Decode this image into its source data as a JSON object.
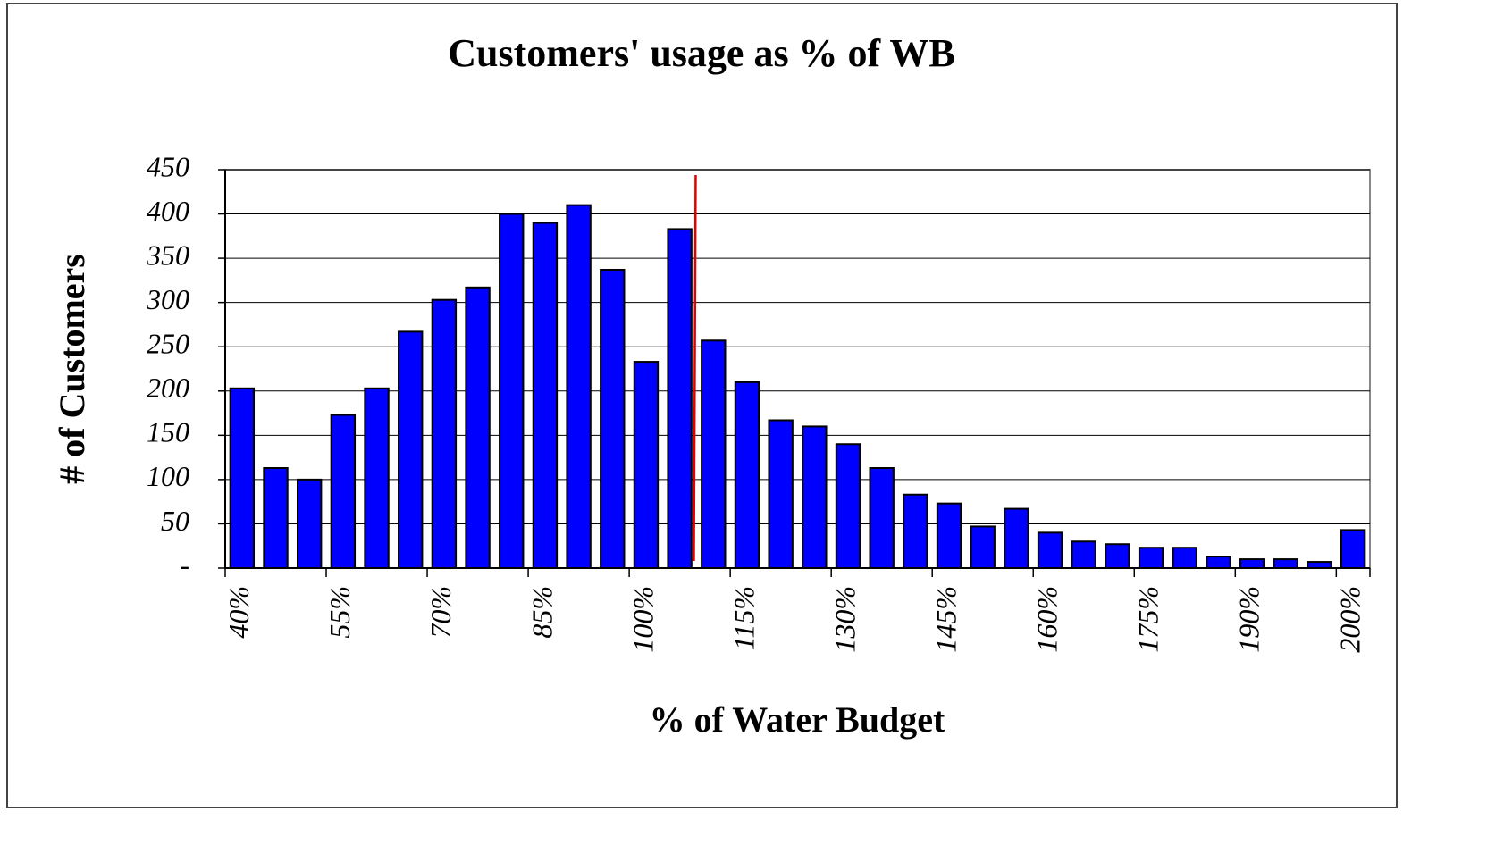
{
  "chart_data": {
    "type": "bar",
    "title": "Customers' usage as % of WB",
    "x_label": "% of Water Budget",
    "y_label": "# of Customers",
    "categories": [
      "40%",
      null,
      null,
      "55%",
      null,
      null,
      "70%",
      null,
      null,
      "85%",
      null,
      null,
      "100%",
      null,
      null,
      "115%",
      null,
      null,
      "130%",
      null,
      null,
      "145%",
      null,
      null,
      "160%",
      null,
      null,
      "175%",
      null,
      null,
      "190%",
      null,
      null,
      "200%"
    ],
    "values": [
      203,
      113,
      100,
      173,
      203,
      267,
      303,
      317,
      400,
      390,
      410,
      337,
      233,
      383,
      257,
      210,
      167,
      160,
      140,
      113,
      83,
      73,
      47,
      67,
      40,
      30,
      27,
      23,
      23,
      13,
      10,
      10,
      7,
      43
    ],
    "color": "#0000ff",
    "ylim": [
      0,
      450
    ],
    "yticks": [
      {
        "value": 0,
        "label": "-"
      },
      50,
      100,
      150,
      200,
      250,
      300,
      350,
      400,
      450
    ],
    "grid": true
  }
}
